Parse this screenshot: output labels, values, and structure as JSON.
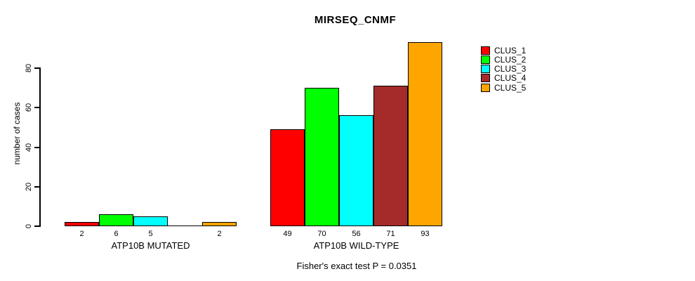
{
  "chart_data": {
    "type": "bar",
    "title": "MIRSEQ_CNMF",
    "ylabel": "number of cases",
    "xlabel": "",
    "categories": [
      "ATP10B MUTATED",
      "ATP10B WILD-TYPE"
    ],
    "series": [
      {
        "name": "CLUS_1",
        "color": "#FF0000",
        "values": [
          2,
          49
        ]
      },
      {
        "name": "CLUS_2",
        "color": "#00FF00",
        "values": [
          6,
          70
        ]
      },
      {
        "name": "CLUS_3",
        "color": "#00FFFF",
        "values": [
          5,
          56
        ]
      },
      {
        "name": "CLUS_4",
        "color": "#A52A2A",
        "values": [
          0,
          71
        ]
      },
      {
        "name": "CLUS_5",
        "color": "#FFA500",
        "values": [
          2,
          93
        ]
      }
    ],
    "yticks": [
      0,
      20,
      40,
      60,
      80
    ],
    "ylim": [
      0,
      93
    ],
    "grid": false,
    "legend_position": "right",
    "bar_value_labels": true,
    "zero_value_labels_hidden": true,
    "annotation": "Fisher's exact test P = 0.0351"
  }
}
